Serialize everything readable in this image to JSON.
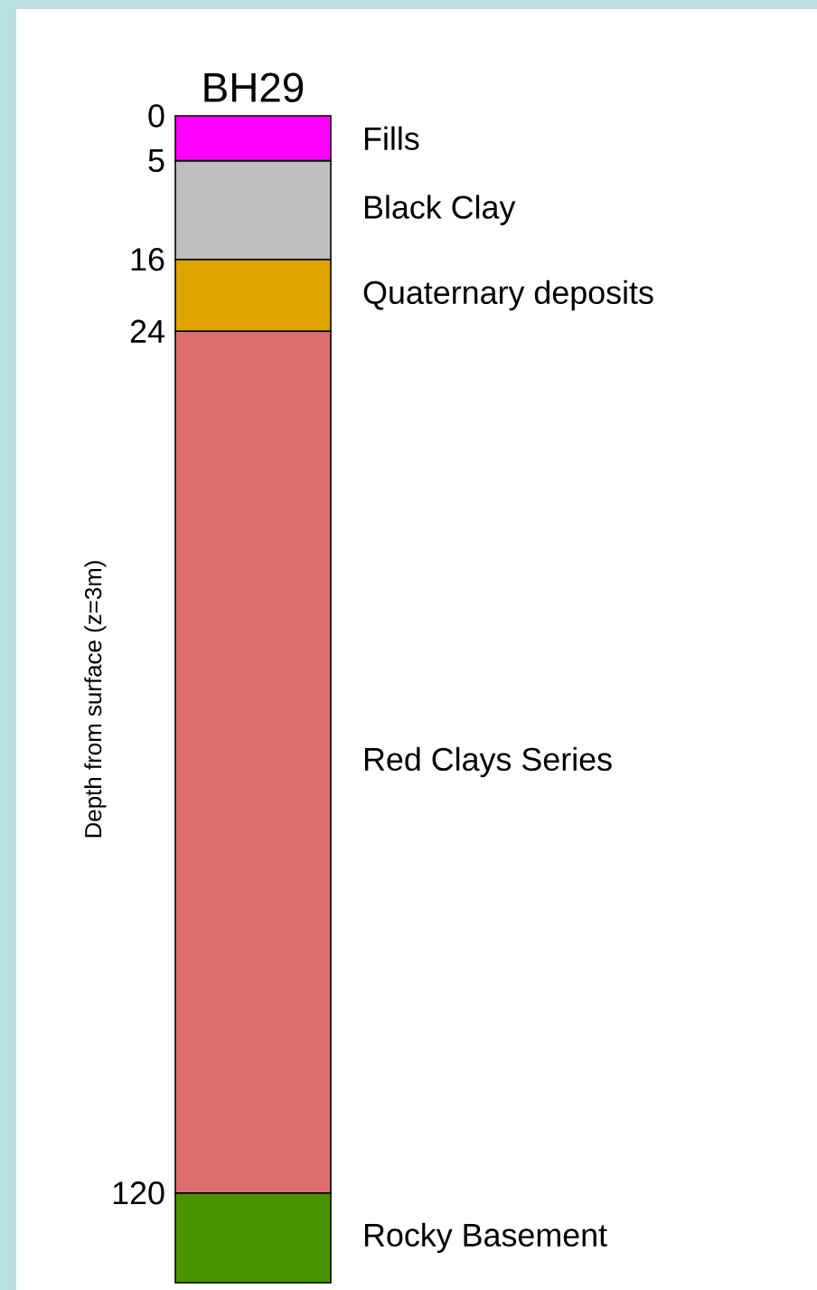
{
  "chart_data": {
    "type": "bar",
    "stacked": true,
    "title": "BH29",
    "ylabel": "Depth from surface (z=3m)",
    "categories": [
      null
    ],
    "series": [
      {
        "name": "Fills",
        "color": "#ff00ff",
        "values": [
          5
        ]
      },
      {
        "name": "Black Clay",
        "color": "#bebebe",
        "values": [
          11
        ]
      },
      {
        "name": "Quaternary deposits",
        "color": "#dfa400",
        "values": [
          8
        ]
      },
      {
        "name": "Red Clays Series",
        "color": "#dd6e6e",
        "values": [
          96
        ]
      },
      {
        "name": "Rocky Basement",
        "color": "#4a9400",
        "values": [
          10
        ]
      }
    ],
    "ylim": [
      130,
      0
    ],
    "yticks": [
      0,
      5,
      16,
      24,
      120
    ]
  }
}
